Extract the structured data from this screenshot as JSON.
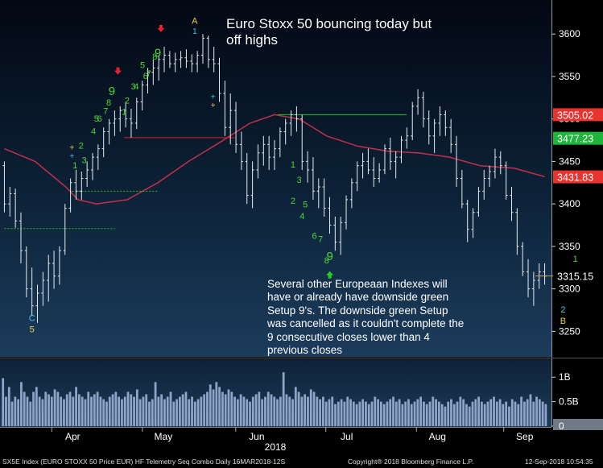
{
  "chart_data": [
    {
      "type": "candlestick",
      "title": "Euro Stoxx 50 bouncing today but off highs",
      "annotation": "Several other Europeaan Indexes will have or already have downside green Setup 9's.  The downside green Setup was cancelled as it couldn't complete the 9 consecutive closes lower than 4 previous closes",
      "x_range": [
        "2018-03-16",
        "2018-09-12"
      ],
      "xticks": [
        "Apr",
        "May",
        "Jun",
        "Jul",
        "Aug",
        "Sep"
      ],
      "year_label": "2018",
      "yticks": [
        3250,
        3300,
        3350,
        3400,
        3450,
        3500,
        3550,
        3600
      ],
      "ylim": [
        3220,
        3640
      ],
      "price_labels": [
        {
          "label": "3505.02",
          "color": "#e8332f"
        },
        {
          "label": "3477.23",
          "color": "#1fb53a"
        },
        {
          "label": "3431.83",
          "color": "#e8332f"
        },
        {
          "label": "3315.15",
          "color": "#ffffff"
        }
      ],
      "price_values": [
        3505.02,
        3477.23,
        3431.83,
        3315.15
      ],
      "bars": [
        [
          3445,
          3450,
          3390,
          3400
        ],
        [
          3400,
          3420,
          3385,
          3412
        ],
        [
          3412,
          3418,
          3372,
          3380
        ],
        [
          3380,
          3390,
          3330,
          3345
        ],
        [
          3345,
          3350,
          3290,
          3300
        ],
        [
          3300,
          3325,
          3268,
          3280
        ],
        [
          3280,
          3305,
          3260,
          3295
        ],
        [
          3295,
          3320,
          3280,
          3310
        ],
        [
          3310,
          3340,
          3285,
          3330
        ],
        [
          3330,
          3345,
          3300,
          3315
        ],
        [
          3315,
          3350,
          3305,
          3345
        ],
        [
          3345,
          3400,
          3340,
          3395
        ],
        [
          3395,
          3430,
          3390,
          3425
        ],
        [
          3425,
          3440,
          3405,
          3415
        ],
        [
          3415,
          3438,
          3405,
          3430
        ],
        [
          3430,
          3450,
          3420,
          3440
        ],
        [
          3440,
          3460,
          3428,
          3455
        ],
        [
          3455,
          3470,
          3440,
          3465
        ],
        [
          3465,
          3490,
          3455,
          3485
        ],
        [
          3485,
          3500,
          3470,
          3495
        ],
        [
          3495,
          3510,
          3480,
          3500
        ],
        [
          3500,
          3515,
          3485,
          3510
        ],
        [
          3510,
          3520,
          3490,
          3500
        ],
        [
          3500,
          3512,
          3478,
          3495
        ],
        [
          3495,
          3525,
          3488,
          3520
        ],
        [
          3520,
          3545,
          3510,
          3540
        ],
        [
          3540,
          3560,
          3530,
          3555
        ],
        [
          3555,
          3570,
          3540,
          3560
        ],
        [
          3560,
          3575,
          3545,
          3570
        ],
        [
          3570,
          3585,
          3555,
          3575
        ],
        [
          3575,
          3580,
          3560,
          3565
        ],
        [
          3565,
          3578,
          3555,
          3570
        ],
        [
          3570,
          3580,
          3560,
          3572
        ],
        [
          3572,
          3582,
          3560,
          3568
        ],
        [
          3568,
          3576,
          3555,
          3565
        ],
        [
          3565,
          3580,
          3555,
          3575
        ],
        [
          3575,
          3600,
          3565,
          3595
        ],
        [
          3595,
          3598,
          3560,
          3570
        ],
        [
          3570,
          3585,
          3555,
          3565
        ],
        [
          3565,
          3572,
          3520,
          3530
        ],
        [
          3530,
          3545,
          3480,
          3490
        ],
        [
          3490,
          3530,
          3470,
          3510
        ],
        [
          3510,
          3520,
          3460,
          3470
        ],
        [
          3470,
          3485,
          3440,
          3450
        ],
        [
          3450,
          3460,
          3400,
          3410
        ],
        [
          3410,
          3450,
          3395,
          3440
        ],
        [
          3440,
          3470,
          3430,
          3460
        ],
        [
          3460,
          3480,
          3445,
          3470
        ],
        [
          3470,
          3480,
          3440,
          3455
        ],
        [
          3455,
          3475,
          3440,
          3465
        ],
        [
          3465,
          3490,
          3455,
          3485
        ],
        [
          3485,
          3500,
          3470,
          3495
        ],
        [
          3495,
          3510,
          3480,
          3505
        ],
        [
          3505,
          3515,
          3485,
          3500
        ],
        [
          3500,
          3505,
          3440,
          3450
        ],
        [
          3450,
          3462,
          3425,
          3440
        ],
        [
          3440,
          3455,
          3405,
          3415
        ],
        [
          3415,
          3430,
          3395,
          3420
        ],
        [
          3420,
          3430,
          3385,
          3395
        ],
        [
          3395,
          3408,
          3365,
          3375
        ],
        [
          3375,
          3385,
          3345,
          3355
        ],
        [
          3355,
          3385,
          3340,
          3378
        ],
        [
          3378,
          3410,
          3370,
          3405
        ],
        [
          3405,
          3430,
          3395,
          3425
        ],
        [
          3425,
          3450,
          3415,
          3445
        ],
        [
          3445,
          3460,
          3430,
          3450
        ],
        [
          3450,
          3465,
          3435,
          3440
        ],
        [
          3440,
          3455,
          3420,
          3430
        ],
        [
          3430,
          3448,
          3425,
          3440
        ],
        [
          3440,
          3470,
          3435,
          3465
        ],
        [
          3465,
          3478,
          3440,
          3450
        ],
        [
          3450,
          3462,
          3430,
          3455
        ],
        [
          3455,
          3480,
          3448,
          3475
        ],
        [
          3475,
          3490,
          3465,
          3480
        ],
        [
          3480,
          3520,
          3475,
          3515
        ],
        [
          3515,
          3535,
          3505,
          3525
        ],
        [
          3525,
          3532,
          3490,
          3500
        ],
        [
          3500,
          3510,
          3470,
          3480
        ],
        [
          3480,
          3500,
          3460,
          3495
        ],
        [
          3495,
          3515,
          3480,
          3505
        ],
        [
          3505,
          3510,
          3480,
          3490
        ],
        [
          3490,
          3500,
          3460,
          3470
        ],
        [
          3470,
          3480,
          3420,
          3430
        ],
        [
          3430,
          3440,
          3395,
          3400
        ],
        [
          3400,
          3405,
          3355,
          3370
        ],
        [
          3370,
          3395,
          3360,
          3390
        ],
        [
          3390,
          3420,
          3385,
          3415
        ],
        [
          3415,
          3440,
          3405,
          3430
        ],
        [
          3430,
          3445,
          3420,
          3438
        ],
        [
          3438,
          3465,
          3430,
          3455
        ],
        [
          3455,
          3462,
          3435,
          3445
        ],
        [
          3445,
          3450,
          3405,
          3410
        ],
        [
          3410,
          3420,
          3380,
          3390
        ],
        [
          3390,
          3395,
          3340,
          3350
        ],
        [
          3350,
          3355,
          3315,
          3320
        ],
        [
          3320,
          3335,
          3290,
          3300
        ],
        [
          3300,
          3320,
          3280,
          3310
        ],
        [
          3310,
          3330,
          3300,
          3320
        ],
        [
          3320,
          3330,
          3305,
          3315
        ]
      ],
      "moving_average": {
        "color": "#c0304a",
        "points": [
          [
            0,
            3465
          ],
          [
            10,
            3450
          ],
          [
            20,
            3420
          ],
          [
            24,
            3405
          ],
          [
            30,
            3400
          ],
          [
            40,
            3405
          ],
          [
            50,
            3425
          ],
          [
            60,
            3450
          ],
          [
            70,
            3472
          ],
          [
            80,
            3495
          ],
          [
            88,
            3505
          ],
          [
            96,
            3500
          ],
          [
            105,
            3480
          ],
          [
            115,
            3468
          ],
          [
            125,
            3462
          ],
          [
            135,
            3460
          ],
          [
            145,
            3455
          ],
          [
            155,
            3445
          ],
          [
            166,
            3442
          ],
          [
            176,
            3432
          ]
        ]
      },
      "horizontal_lines": [
        {
          "y": 3478,
          "from": 39,
          "to": 75,
          "color": "#d8202a",
          "style": "solid"
        },
        {
          "y": 3505,
          "from": 89,
          "to": 131,
          "color": "#22c022",
          "style": "solid"
        },
        {
          "y": 3415,
          "from": 22,
          "to": 50,
          "color": "#22c022",
          "style": "dashed"
        },
        {
          "y": 3371,
          "from": 0,
          "to": 36,
          "color": "#22c022",
          "style": "dashed"
        }
      ],
      "seq_labels": [
        {
          "text": "1",
          "bar": 23,
          "y": 3442,
          "color": "#4cd838",
          "size": 11
        },
        {
          "text": "2",
          "bar": 25,
          "y": 3465,
          "color": "#4cd838",
          "size": 11
        },
        {
          "text": "3",
          "bar": 26,
          "y": 3448,
          "color": "#4cd838",
          "size": 11
        },
        {
          "text": "4",
          "bar": 29,
          "y": 3482,
          "color": "#4cd838",
          "size": 11
        },
        {
          "text": "5",
          "bar": 30,
          "y": 3497,
          "color": "#4cd838",
          "size": 11
        },
        {
          "text": "6",
          "bar": 31,
          "y": 3497,
          "color": "#4cd838",
          "size": 11
        },
        {
          "text": "7",
          "bar": 33,
          "y": 3506,
          "color": "#4cd838",
          "size": 11
        },
        {
          "text": "8",
          "bar": 34,
          "y": 3516,
          "color": "#4cd838",
          "size": 11
        },
        {
          "text": "9",
          "bar": 35,
          "y": 3528,
          "color": "#4cd838",
          "size": 15
        },
        {
          "text": "1",
          "bar": 39,
          "y": 3505,
          "color": "#4cd838",
          "size": 11
        },
        {
          "text": "2",
          "bar": 40,
          "y": 3518,
          "color": "#4cd838",
          "size": 11
        },
        {
          "text": "3",
          "bar": 42,
          "y": 3535,
          "color": "#4cd838",
          "size": 11
        },
        {
          "text": "4",
          "bar": 43,
          "y": 3535,
          "color": "#4cd838",
          "size": 11
        },
        {
          "text": "5",
          "bar": 45,
          "y": 3560,
          "color": "#4cd838",
          "size": 11
        },
        {
          "text": "6",
          "bar": 46,
          "y": 3547,
          "color": "#4cd838",
          "size": 11
        },
        {
          "text": "7",
          "bar": 47,
          "y": 3550,
          "color": "#4cd838",
          "size": 11
        },
        {
          "text": "8",
          "bar": 49,
          "y": 3570,
          "color": "#4cd838",
          "size": 11
        },
        {
          "text": "9",
          "bar": 50,
          "y": 3573,
          "color": "#4cd838",
          "size": 15
        },
        {
          "text": "1",
          "bar": 94,
          "y": 3443,
          "color": "#4cd838",
          "size": 11
        },
        {
          "text": "3",
          "bar": 96,
          "y": 3425,
          "color": "#4cd838",
          "size": 11
        },
        {
          "text": "2",
          "bar": 94,
          "y": 3400,
          "color": "#4cd838",
          "size": 11
        },
        {
          "text": "5",
          "bar": 98,
          "y": 3396,
          "color": "#4cd838",
          "size": 11
        },
        {
          "text": "4",
          "bar": 97,
          "y": 3382,
          "color": "#4cd838",
          "size": 11
        },
        {
          "text": "6",
          "bar": 101,
          "y": 3359,
          "color": "#4cd838",
          "size": 11
        },
        {
          "text": "7",
          "bar": 103,
          "y": 3355,
          "color": "#4cd838",
          "size": 11
        },
        {
          "text": "9",
          "bar": 106,
          "y": 3334,
          "color": "#4cd838",
          "size": 15
        },
        {
          "text": "8",
          "bar": 105,
          "y": 3330,
          "color": "#4cd838",
          "size": 11
        },
        {
          "text": "1",
          "bar": 186,
          "y": 3332,
          "color": "#4cd838",
          "size": 11
        },
        {
          "text": "A",
          "bar": 62,
          "y": 3612,
          "color": "#e8d24a",
          "size": 11
        },
        {
          "text": "1",
          "bar": 62,
          "y": 3600,
          "color": "#38c8e0",
          "size": 10
        },
        {
          "text": "C",
          "bar": 9,
          "y": 3262,
          "color": "#38c8e0",
          "size": 11
        },
        {
          "text": "5",
          "bar": 9,
          "y": 3249,
          "color": "#e8d24a",
          "size": 11
        },
        {
          "text": "2",
          "bar": 182,
          "y": 3272,
          "color": "#38c8e0",
          "size": 11
        },
        {
          "text": "B",
          "bar": 182,
          "y": 3259,
          "color": "#e8d24a",
          "size": 11
        }
      ],
      "arrows": [
        {
          "bar": 37,
          "y": 3555,
          "direction": "down",
          "color": "#e8202a"
        },
        {
          "bar": 51,
          "y": 3605,
          "direction": "down",
          "color": "#e8202a"
        },
        {
          "bar": 106,
          "y": 3318,
          "direction": "up",
          "color": "#22d022"
        }
      ],
      "plus_marks": [
        {
          "bar": 22,
          "y": 3463,
          "color": "#e8d24a"
        },
        {
          "bar": 22,
          "y": 3453,
          "color": "#38c8e0"
        },
        {
          "bar": 68,
          "y": 3523,
          "color": "#38c8e0"
        },
        {
          "bar": 68,
          "y": 3513,
          "color": "#e8d24a"
        }
      ]
    },
    {
      "type": "bar",
      "title": "volume",
      "yticks": [
        "1B",
        "0.5B",
        "0"
      ],
      "ylim": [
        0,
        1.3
      ],
      "values": [
        0.98,
        0.6,
        0.8,
        0.5,
        0.6,
        0.55,
        0.9,
        0.7,
        0.6,
        0.5,
        0.7,
        0.8,
        0.6,
        0.55,
        0.7,
        0.65,
        0.6,
        0.75,
        0.7,
        0.6,
        0.55,
        0.65,
        0.7,
        0.6,
        0.8,
        0.65,
        0.6,
        0.55,
        0.7,
        0.6,
        0.65,
        0.7,
        0.6,
        0.55,
        0.5,
        0.6,
        0.65,
        0.7,
        0.6,
        0.55,
        0.6,
        0.7,
        0.65,
        0.6,
        0.75,
        0.55,
        0.6,
        0.65,
        0.5,
        0.55,
        0.9,
        0.6,
        0.65,
        0.55,
        0.6,
        0.7,
        0.5,
        0.55,
        0.6,
        0.65,
        0.7,
        0.55,
        0.6,
        0.5,
        0.55,
        0.6,
        0.65,
        0.7,
        0.85,
        0.75,
        0.9,
        0.8,
        0.7,
        0.65,
        0.75,
        0.7,
        0.6,
        0.55,
        0.65,
        0.6,
        0.55,
        0.5,
        0.6,
        0.65,
        0.7,
        0.55,
        0.6,
        0.7,
        0.65,
        0.6,
        0.55,
        0.6,
        1.1,
        0.65,
        0.6,
        0.55,
        0.8,
        0.7,
        0.6,
        0.65,
        0.6,
        0.75,
        0.7,
        0.6,
        0.55,
        0.6,
        0.5,
        0.55,
        0.6,
        0.45,
        0.5,
        0.55,
        0.5,
        0.6,
        0.55,
        0.5,
        0.45,
        0.5,
        0.55,
        0.5,
        0.45,
        0.5,
        0.6,
        0.55,
        0.5,
        0.45,
        0.5,
        0.55,
        0.6,
        0.5,
        0.55,
        0.45,
        0.5,
        0.55,
        0.45,
        0.5,
        0.55,
        0.6,
        0.5,
        0.45,
        0.5,
        0.6,
        0.55,
        0.5,
        0.45,
        0.4,
        0.5,
        0.55,
        0.45,
        0.5,
        0.6,
        0.55,
        0.45,
        0.4,
        0.5,
        0.55,
        0.6,
        0.5,
        0.45,
        0.5,
        0.55,
        0.6,
        0.5,
        0.55,
        0.45,
        0.5,
        0.4,
        0.55,
        0.5,
        0.45,
        0.6,
        0.5,
        0.55,
        0.65,
        0.5,
        0.6,
        0.55,
        0.5,
        0.45
      ]
    }
  ],
  "footer": {
    "left": "SX5E Index (EURO STOXX 50 Price EUR) HF Telemetry Seq Combo  Daily 16MAR2018-12S",
    "copyright": "Copyright® 2018 Bloomberg Finance L.P.",
    "date": "12-Sep-2018 10:54:35"
  }
}
